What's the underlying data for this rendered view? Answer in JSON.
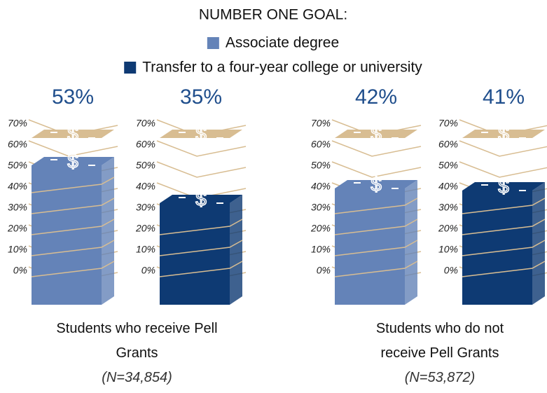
{
  "chart_data": {
    "type": "pictorial_bar",
    "title": "NUMBER ONE GOAL:",
    "categories": [
      "Students who receive Pell Grants",
      "Students who do not receive Pell Grants"
    ],
    "category_notes": [
      "(N=34,854)",
      "(N=53,872)"
    ],
    "series": [
      {
        "name": "Associate degree",
        "color": "#6483b8",
        "values": [
          53,
          42
        ],
        "value_labels": [
          "53%",
          "42%"
        ]
      },
      {
        "name": "Transfer to a four-year college or university",
        "color": "#0e3a73",
        "values": [
          35,
          41
        ],
        "value_labels": [
          "35%",
          "41%"
        ]
      }
    ],
    "ylim": [
      0,
      70
    ],
    "yticks": [
      {
        "value": 0,
        "label": "0%"
      },
      {
        "value": 10,
        "label": "10%"
      },
      {
        "value": 20,
        "label": "20%"
      },
      {
        "value": 30,
        "label": "30%"
      },
      {
        "value": 40,
        "label": "40%"
      },
      {
        "value": 50,
        "label": "50%"
      },
      {
        "value": 60,
        "label": "60%"
      },
      {
        "value": 70,
        "label": "70%"
      }
    ],
    "grid": true,
    "grid_color": "#d8bd92"
  }
}
